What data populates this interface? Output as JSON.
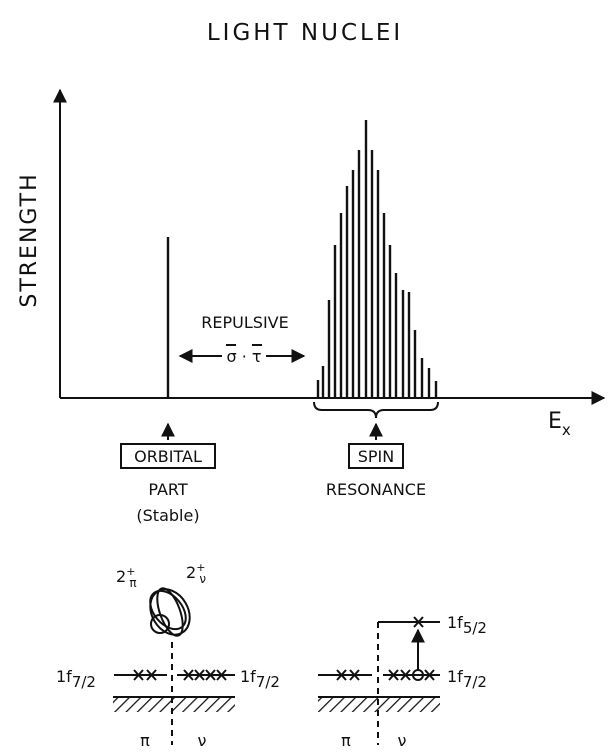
{
  "title": "LIGHT NUCLEI",
  "y_axis_label": "STRENGTH",
  "x_axis_label": {
    "main": "E",
    "sub": "x"
  },
  "interaction": {
    "text": "REPULSIVE",
    "operator": "σ · τ"
  },
  "orbital": {
    "box": "ORBITAL",
    "lines": [
      "PART",
      "(Stable)"
    ]
  },
  "spin": {
    "box": "SPIN",
    "line": "RESONANCE"
  },
  "left_diagram": {
    "state_pi": {
      "main": "2",
      "sup": "+",
      "sub": "π"
    },
    "state_nu": {
      "main": "2",
      "sup": "+",
      "sub": "ν"
    },
    "level_left": {
      "main": "1f",
      "sub": "7/2"
    },
    "level_right": {
      "main": "1f",
      "sub": "7/2"
    },
    "pi": "π",
    "nu": "ν"
  },
  "right_diagram": {
    "upper_level": {
      "main": "1f",
      "sub": "5/2"
    },
    "lower_level": {
      "main": "1f",
      "sub": "7/2"
    },
    "pi": "π",
    "nu": "ν"
  }
}
